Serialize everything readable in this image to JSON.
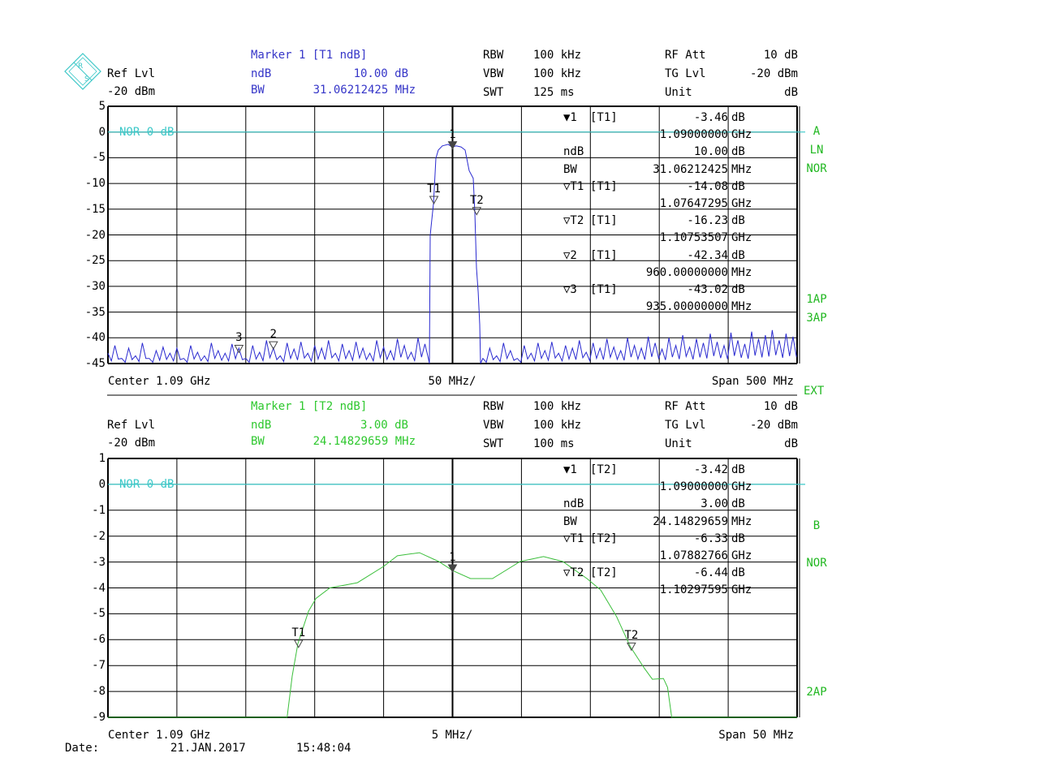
{
  "colors": {
    "trace_1": "#2a2ad0",
    "trace_2": "#3cbf3c",
    "reference_line": "#3cc8c8",
    "header_1": "#3636c8",
    "header_2": "#2ec82e",
    "side_labels": "#22b822",
    "grid": "#000000"
  },
  "logo": {
    "text": "R&S",
    "icon": "rohde-schwarz-logo-icon"
  },
  "panels": [
    {
      "header": {
        "ref_lvl_label": "Ref Lvl",
        "ref_lvl_value": "-20 dBm",
        "marker_title": "Marker 1 [T1 ndB]",
        "ndb_label": "ndB",
        "ndb_value": "10.00 dB",
        "bw_label": "BW",
        "bw_value": "31.06212425 MHz",
        "rbw_label": "RBW",
        "rbw_value": "100 kHz",
        "vbw_label": "VBW",
        "vbw_value": "100 kHz",
        "swt_label": "SWT",
        "swt_value": "125 ms",
        "rf_att_label": "RF Att",
        "rf_att_value": "10 dB",
        "tg_lvl_label": "TG Lvl",
        "tg_lvl_value": "-20 dBm",
        "unit_label": "Unit",
        "unit_value": "dB"
      },
      "nor_label": "NOR 0 dB",
      "footer": {
        "center": "Center 1.09 GHz",
        "per_div": "50 MHz/",
        "span": "Span 500 MHz"
      },
      "side_labels": [
        "A",
        "LN",
        "NOR",
        "1AP",
        "3AP"
      ],
      "marker_table": [
        {
          "label": "▼1",
          "trace": "[T1]",
          "value": "-3.46",
          "unit": "dB"
        },
        {
          "label": "",
          "trace": "",
          "value": "1.09000000",
          "unit": "GHz"
        },
        {
          "label": "ndB",
          "trace": "",
          "value": "10.00",
          "unit": "dB"
        },
        {
          "label": "BW",
          "trace": "",
          "value": "31.06212425",
          "unit": "MHz"
        },
        {
          "label": "▽T1",
          "trace": "[T1]",
          "value": "-14.08",
          "unit": "dB"
        },
        {
          "label": "",
          "trace": "",
          "value": "1.07647295",
          "unit": "GHz"
        },
        {
          "label": "▽T2",
          "trace": "[T1]",
          "value": "-16.23",
          "unit": "dB"
        },
        {
          "label": "",
          "trace": "",
          "value": "1.10753507",
          "unit": "GHz"
        },
        {
          "label": "▽2",
          "trace": "[T1]",
          "value": "-42.34",
          "unit": "dB"
        },
        {
          "label": "",
          "trace": "",
          "value": "960.00000000",
          "unit": "MHz"
        },
        {
          "label": "▽3",
          "trace": "[T1]",
          "value": "-43.02",
          "unit": "dB"
        },
        {
          "label": "",
          "trace": "",
          "value": "935.00000000",
          "unit": "MHz"
        }
      ]
    },
    {
      "header": {
        "ref_lvl_label": "Ref Lvl",
        "ref_lvl_value": "-20 dBm",
        "marker_title": "Marker 1 [T2 ndB]",
        "ndb_label": "ndB",
        "ndb_value": "3.00 dB",
        "bw_label": "BW",
        "bw_value": "24.14829659 MHz",
        "rbw_label": "RBW",
        "rbw_value": "100 kHz",
        "vbw_label": "VBW",
        "vbw_value": "100 kHz",
        "swt_label": "SWT",
        "swt_value": "100 ms",
        "rf_att_label": "RF Att",
        "rf_att_value": "10 dB",
        "tg_lvl_label": "TG Lvl",
        "tg_lvl_value": "-20 dBm",
        "unit_label": "Unit",
        "unit_value": "dB"
      },
      "nor_label": "NOR 0 dB",
      "footer": {
        "center": "Center 1.09 GHz",
        "per_div": "5 MHz/",
        "span": "Span 50 MHz"
      },
      "side_labels": [
        "B",
        "NOR",
        "2AP"
      ],
      "marker_table": [
        {
          "label": "▼1",
          "trace": "[T2]",
          "value": "-3.42",
          "unit": "dB"
        },
        {
          "label": "",
          "trace": "",
          "value": "1.09000000",
          "unit": "GHz"
        },
        {
          "label": "ndB",
          "trace": "",
          "value": "3.00",
          "unit": "dB"
        },
        {
          "label": "BW",
          "trace": "",
          "value": "24.14829659",
          "unit": "MHz"
        },
        {
          "label": "▽T1",
          "trace": "[T2]",
          "value": "-6.33",
          "unit": "dB"
        },
        {
          "label": "",
          "trace": "",
          "value": "1.07882766",
          "unit": "GHz"
        },
        {
          "label": "▽T2",
          "trace": "[T2]",
          "value": "-6.44",
          "unit": "dB"
        },
        {
          "label": "",
          "trace": "",
          "value": "1.10297595",
          "unit": "GHz"
        }
      ]
    }
  ],
  "ext_label": "EXT",
  "date": {
    "label": "Date:",
    "date": "21.JAN.2017",
    "time": "15:48:04"
  },
  "chart_data": [
    {
      "type": "line",
      "x_unit": "MHz",
      "y_unit": "dB",
      "xlim": [
        840,
        1340
      ],
      "ylim": [
        -45,
        5
      ],
      "yticks": [
        "5",
        "0",
        "-5",
        "-10",
        "-15",
        "-20",
        "-25",
        "-30",
        "-35",
        "-40",
        "-45"
      ],
      "x_divisions": 10,
      "grid": true,
      "reference_line_db": 0,
      "series": [
        {
          "noise_left": {
            "x_start": 840,
            "x_step": 5,
            "y": [
              -43,
              -41.5,
              -44,
              -42,
              -43.5,
              -41,
              -44,
              -42.5,
              -41.8,
              -43,
              -42,
              -44,
              -41.5,
              -42.8,
              -43.5,
              -41,
              -42.5,
              -43,
              -41.2,
              -42,
              -44,
              -41.5,
              -42.8,
              -40.5,
              -42,
              -43.5,
              -41,
              -42.2,
              -40.8,
              -43,
              -41.5,
              -42,
              -40.5,
              -43,
              -41.2,
              -42.5,
              -40.8,
              -42,
              -43,
              -40.5,
              -41.8,
              -42.5,
              -40.2,
              -41.5,
              -42.8,
              -40,
              -41.2
            ]
          },
          "passband": [
            [
              1073.2,
              -45
            ],
            [
              1073.8,
              -20.1
            ],
            [
              1074.4,
              -18.5
            ],
            [
              1076.2,
              -13.8
            ],
            [
              1077.9,
              -5.1
            ],
            [
              1079.7,
              -3.5
            ],
            [
              1082.6,
              -2.7
            ],
            [
              1086.8,
              -2.4
            ],
            [
              1089.7,
              -2.9
            ],
            [
              1092.7,
              -2.7
            ],
            [
              1096.2,
              -2.9
            ],
            [
              1099.1,
              -3.5
            ],
            [
              1102.1,
              -7.5
            ],
            [
              1105.0,
              -9
            ],
            [
              1106.2,
              -15.7
            ],
            [
              1107.4,
              -26.4
            ],
            [
              1108.6,
              -31.1
            ],
            [
              1109.7,
              -37.4
            ],
            [
              1110.3,
              -45
            ]
          ],
          "noise_right": {
            "x_start": 1112,
            "x_step": 5,
            "y": [
              -44,
              -42,
              -43.5,
              -41,
              -42.5,
              -44,
              -41.5,
              -43,
              -41,
              -42.5,
              -40.8,
              -43,
              -41.5,
              -42,
              -40.5,
              -42.8,
              -41,
              -42,
              -40.2,
              -41.8,
              -42.5,
              -40,
              -41.5,
              -42,
              -39.8,
              -41,
              -42.2,
              -40,
              -41.5,
              -39.5,
              -41.8,
              -40.2,
              -41,
              -39.2,
              -40.8,
              -41.5,
              -39,
              -40.5,
              -41.2,
              -38.8,
              -40.2,
              -39.5,
              -38.5,
              -40.5,
              -39.2,
              -39.8
            ]
          }
        }
      ],
      "markers": [
        {
          "name": "1",
          "x": 1090,
          "y": -3.46,
          "filled": true
        },
        {
          "name": "T1",
          "x": 1076.47295,
          "y": -14.08
        },
        {
          "name": "T2",
          "x": 1107.53507,
          "y": -16.23
        },
        {
          "name": "2",
          "x": 960,
          "y": -42.34
        },
        {
          "name": "3",
          "x": 935,
          "y": -43.02
        }
      ]
    },
    {
      "type": "line",
      "x_unit": "MHz",
      "y_unit": "dB",
      "xlim": [
        1065,
        1115
      ],
      "ylim": [
        -9,
        1
      ],
      "yticks": [
        "1",
        "0",
        "-1",
        "-2",
        "-3",
        "-4",
        "-5",
        "-6",
        "-7",
        "-8",
        "-9"
      ],
      "x_divisions": 10,
      "grid": true,
      "reference_line_db": 0,
      "series": [
        {
          "passband": [
            [
              1065,
              -9
            ],
            [
              1078.0,
              -9
            ],
            [
              1078.37,
              -7.4
            ],
            [
              1078.78,
              -6.15
            ],
            [
              1079.55,
              -4.9
            ],
            [
              1080.1,
              -4.4
            ],
            [
              1081.1,
              -4.0
            ],
            [
              1083.1,
              -3.8
            ],
            [
              1085.0,
              -3.17
            ],
            [
              1086.0,
              -2.76
            ],
            [
              1087.6,
              -2.64
            ],
            [
              1089.0,
              -2.98
            ],
            [
              1090.0,
              -3.33
            ],
            [
              1091.3,
              -3.64
            ],
            [
              1092.9,
              -3.64
            ],
            [
              1094.9,
              -2.98
            ],
            [
              1096.6,
              -2.79
            ],
            [
              1098.0,
              -2.98
            ],
            [
              1099.75,
              -3.64
            ],
            [
              1100.75,
              -4.08
            ],
            [
              1101.9,
              -5.11
            ],
            [
              1102.9,
              -6.27
            ],
            [
              1103.9,
              -7.09
            ],
            [
              1104.5,
              -7.53
            ],
            [
              1105.3,
              -7.5
            ],
            [
              1105.6,
              -7.84
            ],
            [
              1105.9,
              -9
            ],
            [
              1115,
              -9
            ]
          ]
        }
      ],
      "markers": [
        {
          "name": "1",
          "x": 1090,
          "y": -3.42,
          "filled": true
        },
        {
          "name": "T1",
          "x": 1078.82766,
          "y": -6.33
        },
        {
          "name": "T2",
          "x": 1102.97595,
          "y": -6.44
        }
      ]
    }
  ]
}
